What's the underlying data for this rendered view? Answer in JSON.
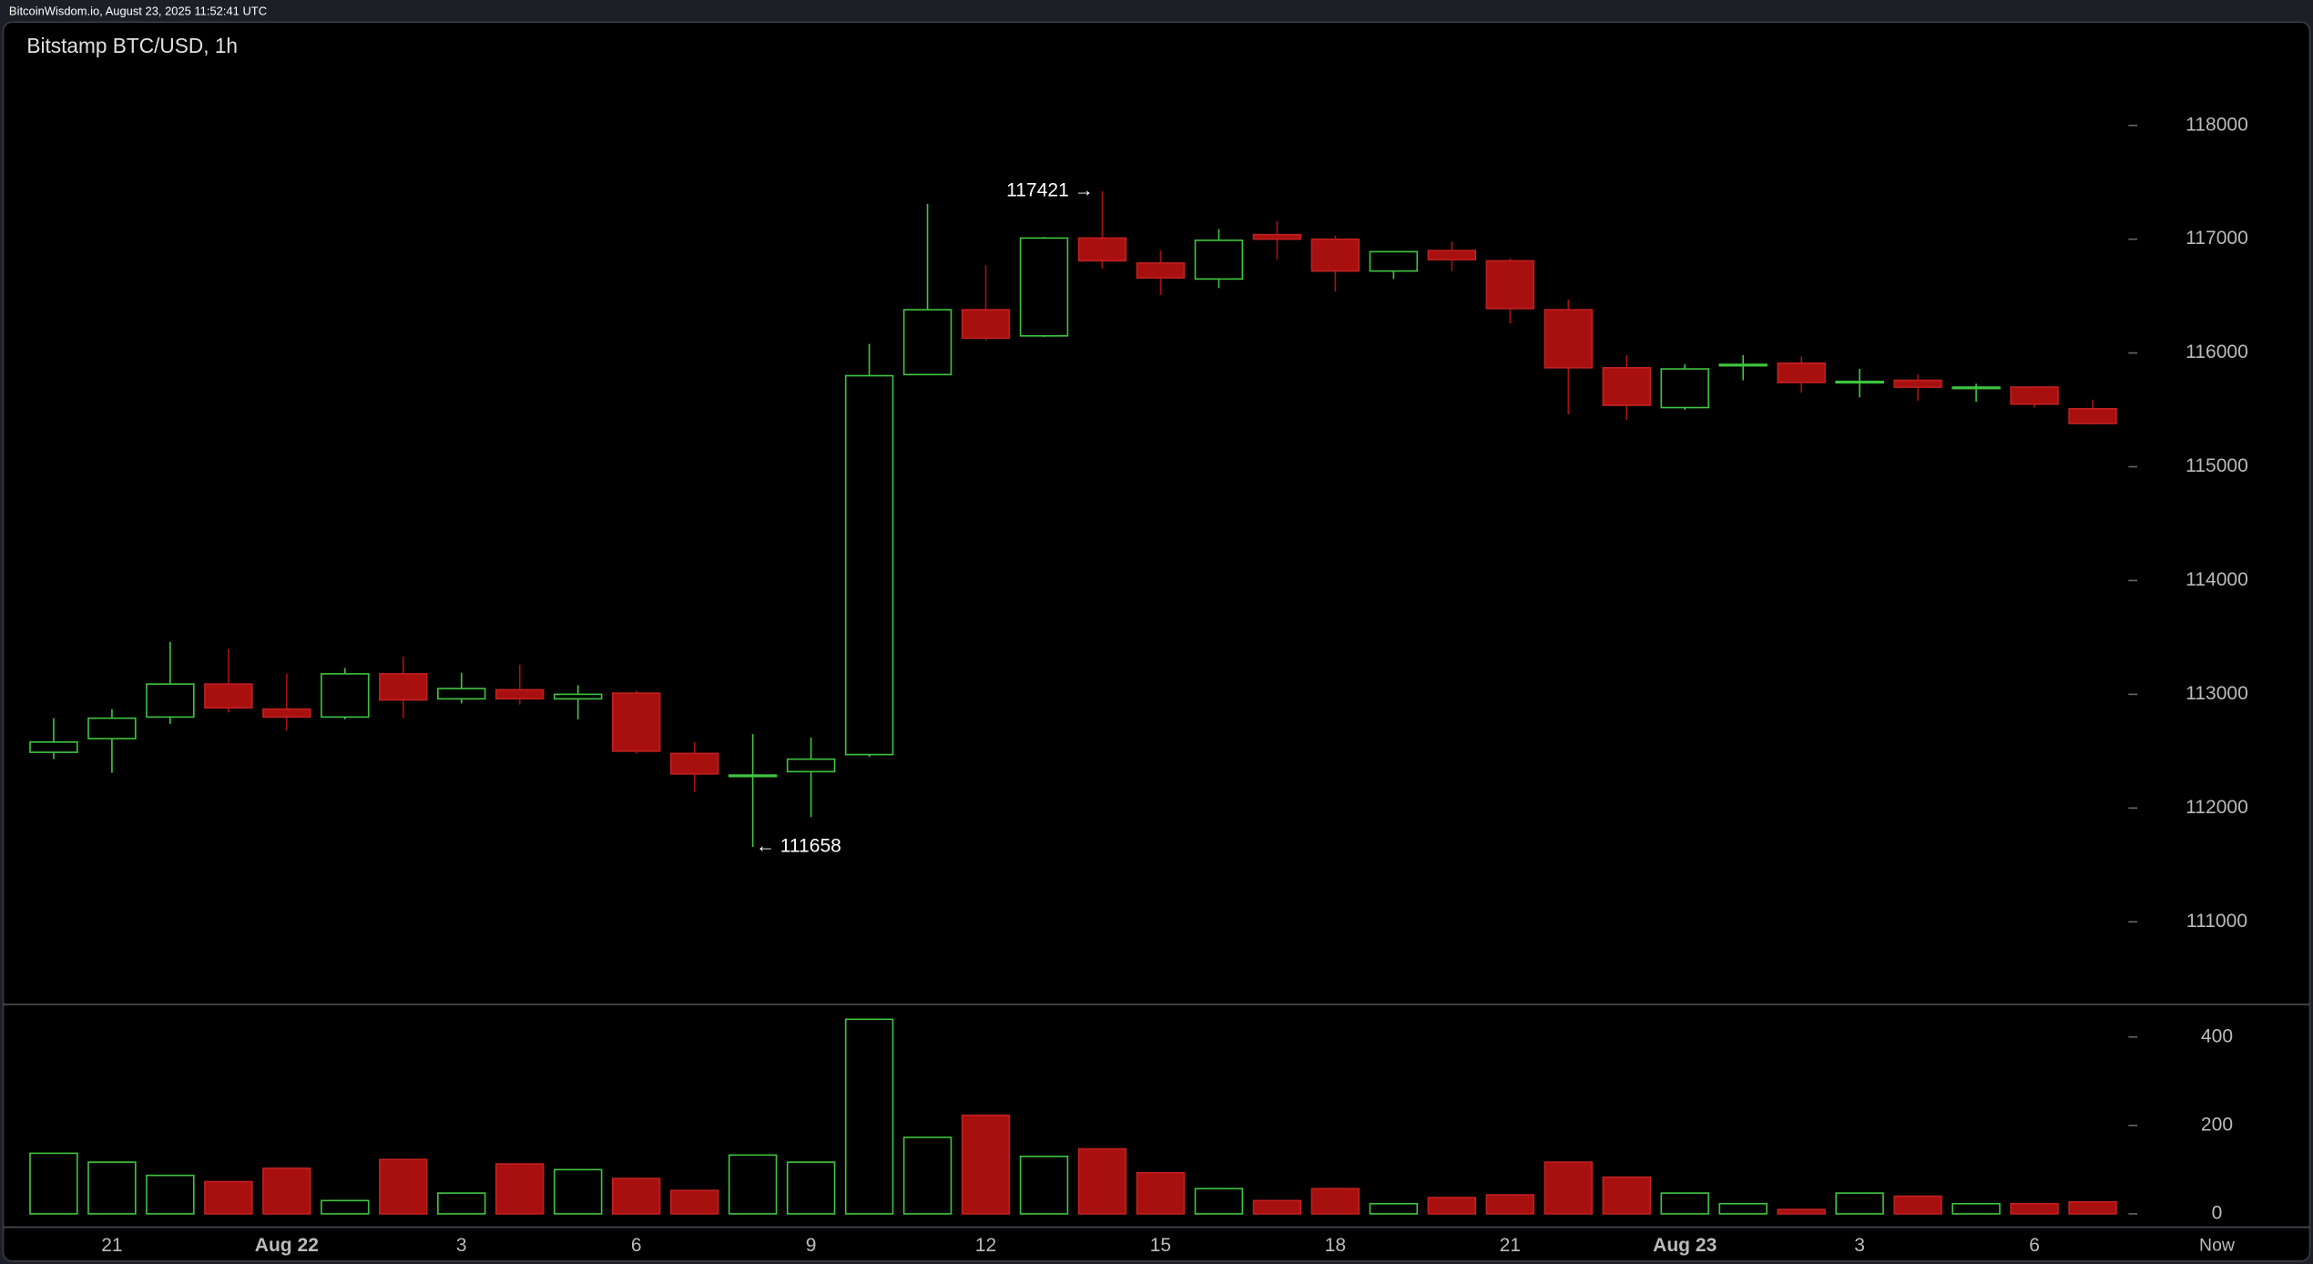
{
  "header": "BitcoinWisdom.io, August 23, 2025 11:52:41 UTC",
  "chart_data": {
    "type": "candlestick",
    "title": "Bitstamp BTC/USD, 1h",
    "x": [
      null,
      "21",
      null,
      null,
      "Aug 22",
      null,
      null,
      "3",
      null,
      null,
      "6",
      null,
      null,
      "9",
      null,
      null,
      "12",
      null,
      null,
      "15",
      null,
      null,
      "18",
      null,
      null,
      "21",
      null,
      null,
      "Aug 23",
      null,
      null,
      "3",
      null,
      null,
      "6",
      null
    ],
    "now_label": "Now",
    "open": [
      112490,
      112610,
      112800,
      113090,
      112870,
      112800,
      113180,
      112960,
      113040,
      112960,
      113010,
      112480,
      112280,
      112320,
      112470,
      115810,
      116380,
      116150,
      117010,
      116790,
      116650,
      117040,
      117000,
      116720,
      116900,
      116810,
      116380,
      115870,
      115520,
      115890,
      115910,
      115740,
      115760,
      115690,
      115700,
      115510
    ],
    "high": [
      112790,
      112870,
      113460,
      113400,
      113180,
      113230,
      113330,
      113190,
      113260,
      113080,
      113030,
      112580,
      112650,
      112620,
      116080,
      117310,
      116770,
      117020,
      117421,
      116900,
      117090,
      117160,
      117030,
      116890,
      116980,
      116830,
      116470,
      115980,
      115900,
      115980,
      115970,
      115860,
      115810,
      115730,
      115710,
      115590
    ],
    "low": [
      112430,
      112310,
      112740,
      112840,
      112680,
      112780,
      112790,
      112920,
      112910,
      112780,
      112480,
      112140,
      111658,
      111920,
      112450,
      115810,
      116110,
      116140,
      116740,
      116510,
      116570,
      116820,
      116540,
      116650,
      116720,
      116260,
      115460,
      115410,
      115500,
      115760,
      115650,
      115610,
      115580,
      115570,
      115520,
      115370
    ],
    "close": [
      112580,
      112790,
      113090,
      112880,
      112800,
      113180,
      112950,
      113050,
      112960,
      113000,
      112500,
      112300,
      112290,
      112430,
      115800,
      116380,
      116130,
      117010,
      116810,
      116660,
      116990,
      117000,
      116720,
      116890,
      116820,
      116390,
      115870,
      115540,
      115860,
      115900,
      115740,
      115750,
      115700,
      115700,
      115550,
      115380
    ],
    "volume": [
      137,
      117,
      87,
      73,
      103,
      30,
      123,
      47,
      113,
      100,
      80,
      53,
      133,
      117,
      440,
      173,
      223,
      130,
      147,
      93,
      57,
      30,
      57,
      23,
      37,
      43,
      117,
      83,
      47,
      23,
      10,
      47,
      40,
      23,
      23,
      27
    ],
    "high_label": "117421 →",
    "low_label": "← 111658",
    "up_color": "#3ec43e",
    "down_color": "#a81010",
    "ylim": [
      110287,
      118843
    ],
    "yticks": [
      111000,
      112000,
      113000,
      114000,
      115000,
      116000,
      117000,
      118000
    ],
    "volume_ylim": [
      0,
      467
    ],
    "volume_yticks": [
      0,
      200,
      400
    ]
  }
}
